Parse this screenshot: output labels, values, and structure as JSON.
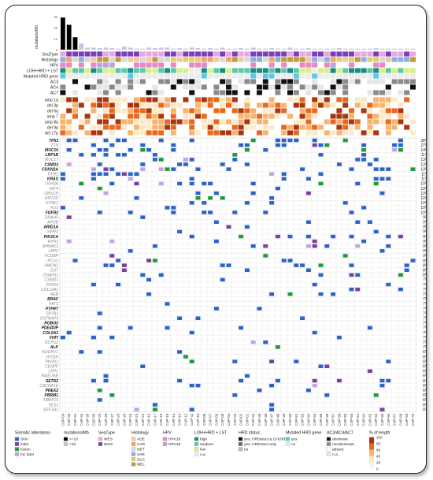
{
  "chart_data": {
    "type": "heatmap",
    "title": "",
    "samples": [
      "CUP-09",
      "CUP-36",
      "CUP-41",
      "CUP-43",
      "CUP-35",
      "CUP-30",
      "CUP-29",
      "CUP-28",
      "CUP-27",
      "CUP-26",
      "CUP-25",
      "CUP-24",
      "CUP-23",
      "CUP-21",
      "CUP-19",
      "CUP-17",
      "CUP-16",
      "CUP-15",
      "CUP-14",
      "CUP-13",
      "CUP-12",
      "CUP-11",
      "CUP-10",
      "CUP-08",
      "CUP-07",
      "CUP-06",
      "CUP-05",
      "CUP-04",
      "CUP-03",
      "CUP-02",
      "CUP-01",
      "CUP-44",
      "CUP-45",
      "CUP-46",
      "CUP-47",
      "CUP-48",
      "CUP-49",
      "CUP-50",
      "CUP-51",
      "CUP-52",
      "CUP-53",
      "CUP-54",
      "CUP-55",
      "CUP-56",
      "CUP-57",
      "CUP-58",
      "CUP-59",
      "CUP-60",
      "CUP-61",
      "CUP-62",
      "CUP-63",
      "CUP-64",
      "CUP-65",
      "CUP-66",
      "CUP-67",
      "CUP-68",
      "CUP-69",
      "CUP-70"
    ],
    "mutations_per_mb_label": "mutations/Mb",
    "mutations_per_mb_ticks": [
      "30",
      "20",
      "10",
      "0"
    ],
    "mutations_per_mb": [
      31,
      24,
      12,
      6,
      2,
      2,
      1.5,
      2,
      1.5,
      1,
      3,
      2,
      1,
      1,
      2,
      1.5,
      2,
      2,
      1,
      1.5,
      1,
      2,
      1.5,
      1,
      1.5,
      1,
      2,
      1,
      1,
      1.5,
      1,
      2,
      1,
      1,
      1.5,
      1,
      1,
      2,
      1,
      1,
      1.5,
      1,
      1,
      1,
      1,
      1.5,
      1,
      1,
      1,
      1,
      1,
      1.5,
      1,
      1,
      1,
      1,
      1,
      1
    ],
    "annotation_tracks": [
      "SeqType",
      "Histology",
      "HPV",
      "LOH+HRD + LST",
      "Mutated HRD gene",
      "AC3",
      "AC4",
      "AC7"
    ],
    "cna_tracks": [
      "amp 1q",
      "del 3p",
      "del 6q",
      "amp 7",
      "amp 8q",
      "del 9p",
      "del 17p"
    ],
    "genes": [
      "TP53",
      "TTN",
      "MUC16",
      "LRP1B",
      "MUC17",
      "CSMD3",
      "CDKN2A",
      "RYR2",
      "KRAS",
      "USH2A",
      "FAT4",
      "OBSCN",
      "KMT2D",
      "SYNE1",
      "FLG",
      "FGFR2",
      "DNAH5",
      "APOB",
      "ARID1A",
      "XIRP2",
      "PIK3CA",
      "RYR3",
      "AHNAK2",
      "LRP2",
      "FCGBP",
      "PCLO",
      "HMCN1",
      "DST",
      "DNAH11",
      "CSMD1",
      "ZFHX4",
      "COL12A1",
      "NEB",
      "BRAF",
      "FAT3",
      "PTPRT",
      "SPTA1",
      "CNTNAP5",
      "ROBO2",
      "PDE4DIP",
      "COL5A1",
      "FHIT",
      "DCHS2",
      "ALK",
      "ADGRV1",
      "HYDIN",
      "PKHD1",
      "CENPF",
      "LRP1",
      "FAM135B",
      "SETD2",
      "CACNA1E",
      "PREX2",
      "PBRM1",
      "NBPF10",
      "YES1",
      "EEF1A1"
    ],
    "bold_genes": [
      "TP53",
      "MUC16",
      "LRP1B",
      "CDKN2A",
      "CSMD3",
      "KRAS",
      "FGFR2",
      "ARID1A",
      "BRAF",
      "PTPRT",
      "ROBO2",
      "PDE4DIP",
      "COL5A1",
      "FHIT",
      "ALK",
      "PIK3CA",
      "SETD2",
      "PREX2",
      "PBRM1"
    ],
    "percent_labels": [
      "36%",
      "27%",
      "14%",
      "11%",
      "13%",
      "13%",
      "13%",
      "11%",
      "11%",
      "10%",
      "10%",
      "10%",
      "10%",
      "10%",
      "10%",
      "10%",
      "9%",
      "9%",
      "9%",
      "9%",
      "9%",
      "9%",
      "9%",
      "9%",
      "9%",
      "8%",
      "8%",
      "8%",
      "8%",
      "7%",
      "7%",
      "7%",
      "7%",
      "7%",
      "7%",
      "7%",
      "7%",
      "7%",
      "7%",
      "7%",
      "7%",
      "7%",
      "7%",
      "7%",
      "6%",
      "6%",
      "6%",
      "6%",
      "6%",
      "6%",
      "6%",
      "6%",
      "6%",
      "6%",
      "6%",
      "6%",
      "6%"
    ],
    "top_bar_ticks": [
      "0",
      "10",
      "20"
    ],
    "alteration_colors": {
      "SNV": "#2b63c8",
      "indel": "#7a3fa0",
      "fusion": "#1f9a3a",
      "foc_hdel": "#c8a0e6"
    },
    "legend": {
      "somatic_alterations": {
        "title": "Somatic alterations",
        "items": [
          "SNV",
          "indel",
          "fusion",
          "foc hdel"
        ]
      },
      "mutations_mb": {
        "title": "mutations/Mb",
        "items": [
          ">=10",
          "<10"
        ]
      },
      "seq_type": {
        "title": "SeqType",
        "items": [
          "WES",
          "WGS"
        ]
      },
      "histology": {
        "title": "Histology",
        "items": [
          "ADE",
          "CAR",
          "NET",
          "SAR",
          "SCC",
          "MEL"
        ]
      },
      "hpv": {
        "title": "HPV",
        "items": [
          "HPV16",
          "HPV18"
        ]
      },
      "loh_hrd_lst": {
        "title": "LOH+HRD + LST",
        "items": [
          "high",
          "medium",
          "low",
          "n.a."
        ]
      },
      "hrd_status": {
        "title": "HRD status",
        "items": [
          "yes, HRDetect & CHORD",
          "yes, HRDetect only",
          "no"
        ]
      },
      "mutated_hrd_gene": {
        "title": "Mutated HRD gene",
        "items": [
          "yes",
          "no"
        ]
      },
      "ac": {
        "title": "AC3/AC4/AC7",
        "items": [
          "dominant",
          "nondominant",
          "absent",
          "n.a."
        ]
      },
      "pct_length": {
        "title": "% of length",
        "ticks": [
          "100",
          "80",
          "60",
          "40",
          "20",
          "0"
        ]
      }
    }
  },
  "colors": {
    "seqtype": {
      "WES": "#e7a8e0",
      "WGS": "#7b3fb8"
    },
    "histology": {
      "ADE": "#f3c9a3",
      "CAR": "#f2a36b",
      "NET": "#d9d9d9",
      "SAR": "#8ab0dd",
      "SCC": "#e4cf6b",
      "MEL": "#c49a36"
    },
    "hpv": {
      "HPV16": "#e58ac7",
      "HPV18": "#bba3dd"
    },
    "loh": {
      "high": "#1a8c84",
      "medium": "#5fc7a8",
      "low": "#d8ef8a",
      "n.a.": "#eeeeee"
    },
    "ac": {
      "dominant": "#111111",
      "nondominant": "#8a8a8a",
      "absent": "#ffffff",
      "n.a.": "#e6e6e6"
    },
    "cna_gradient": [
      "#fde9c8",
      "#f9b46b",
      "#e8681e",
      "#a8350f"
    ],
    "mut_high": "#000000",
    "mut_low": "#c7c2e6"
  }
}
